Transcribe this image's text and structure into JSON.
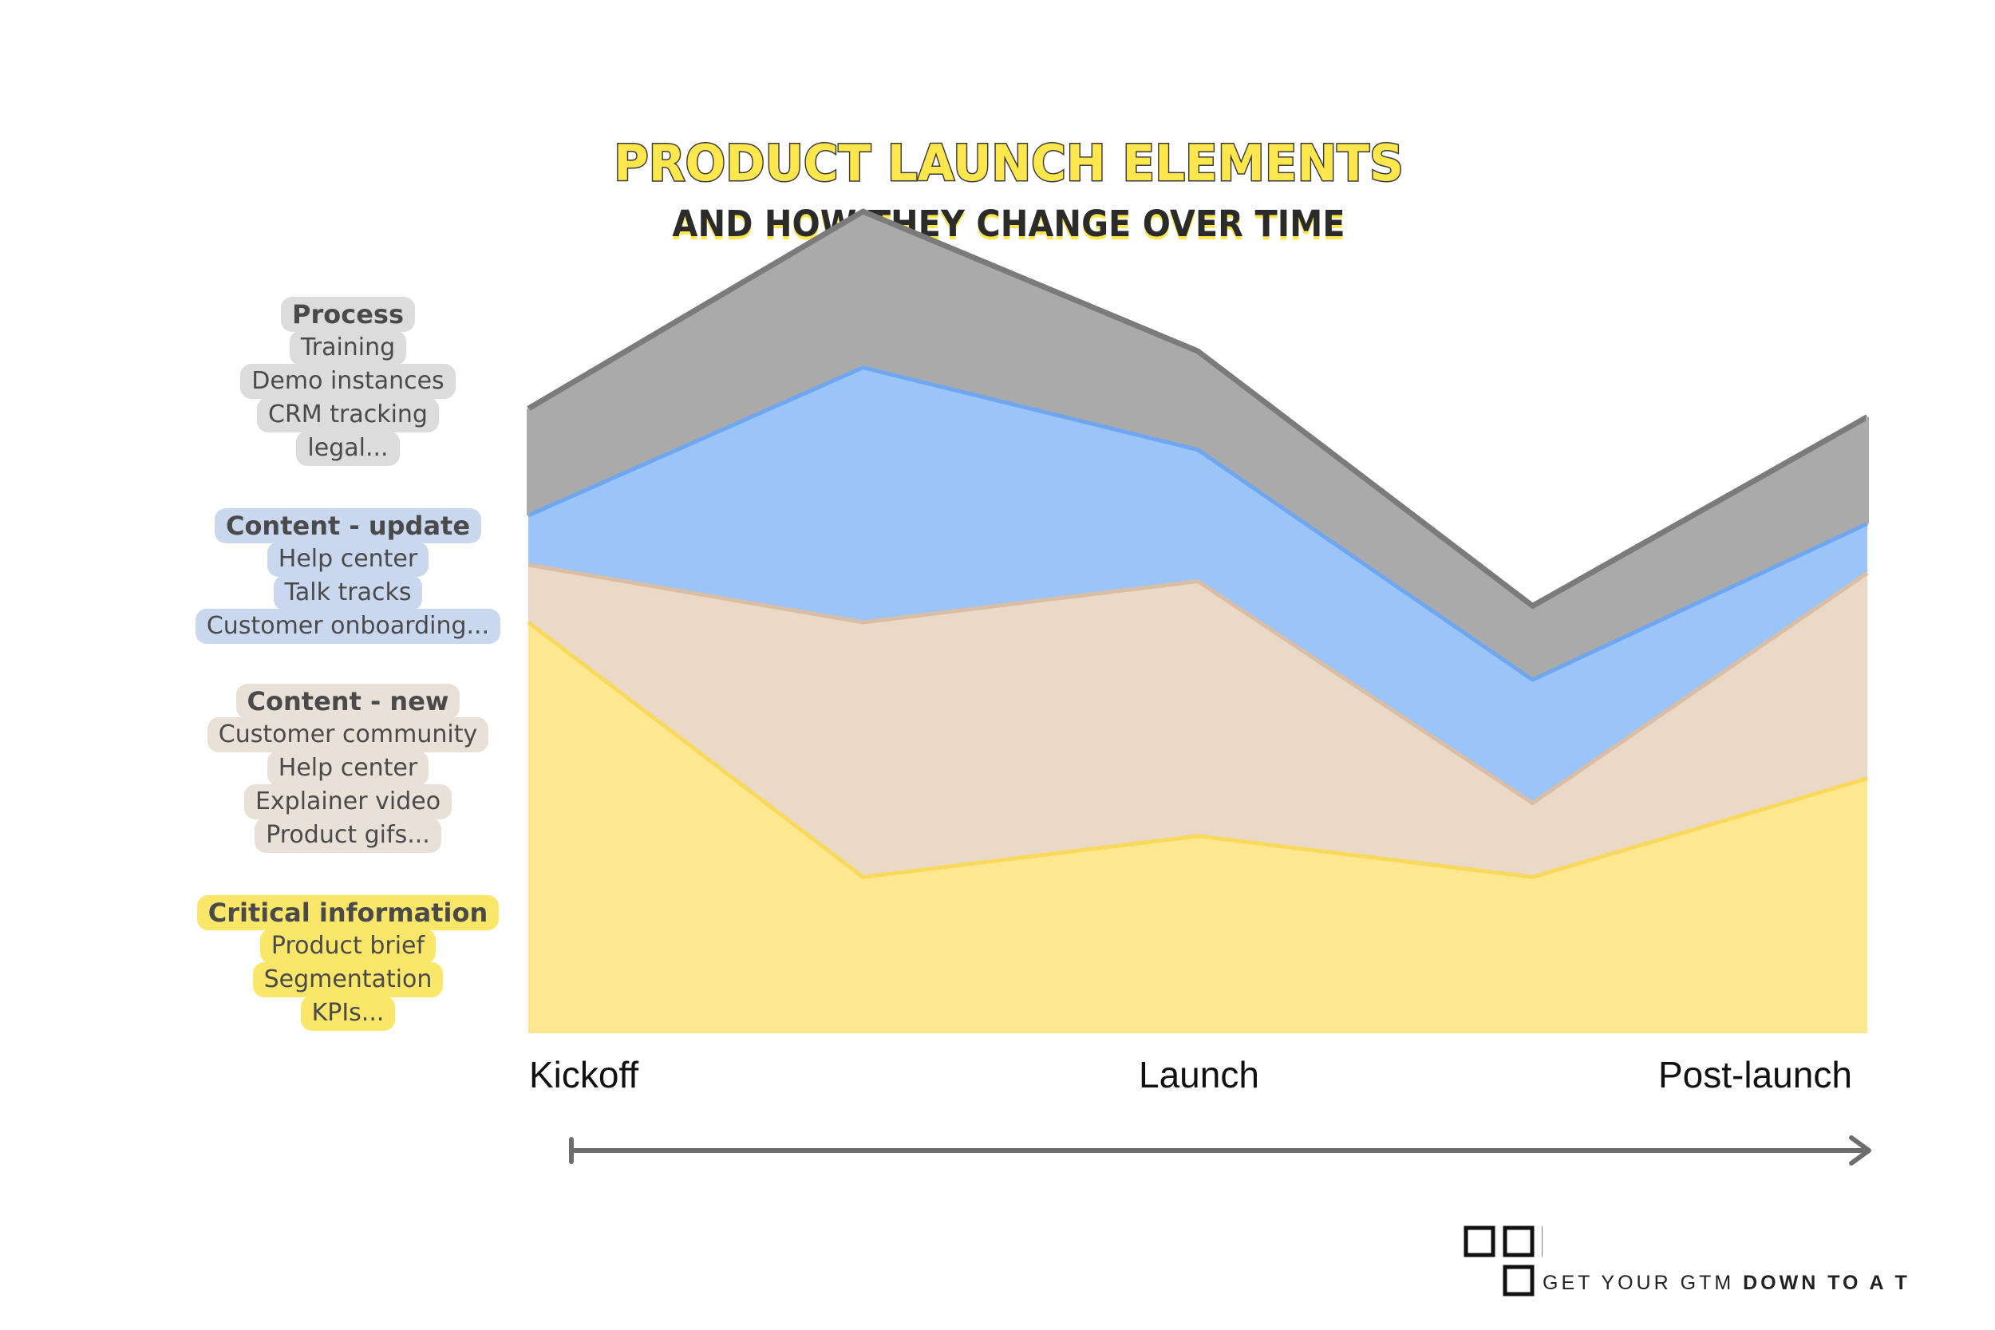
{
  "title": "PRODUCT LAUNCH ELEMENTS",
  "subtitle": "AND HOW THEY CHANGE OVER TIME",
  "colors": {
    "process": "#abaaaa",
    "process_line": "#7b7b7b",
    "update": "#9bc4f8",
    "update_line": "#6ea6f0",
    "new": "#ead9c6",
    "new_line": "#d9bea5",
    "critical": "#fde78f",
    "critical_line": "#f9d95c",
    "legend_process": "#dcdcdc",
    "legend_update": "#c9d8ee",
    "legend_new": "#e9e0d8",
    "legend_critical": "#fae668"
  },
  "legend": {
    "process": {
      "heading": "Process",
      "items": [
        "Training",
        "Demo instances",
        "CRM tracking",
        "legal..."
      ]
    },
    "update": {
      "heading": "Content - update",
      "items": [
        "Help center",
        "Talk tracks",
        "Customer onboarding..."
      ]
    },
    "new": {
      "heading": "Content - new",
      "items": [
        "Customer community",
        "Help center",
        "Explainer video",
        "Product gifs..."
      ]
    },
    "critical": {
      "heading": "Critical information",
      "items": [
        "Product brief",
        "Segmentation",
        "KPIs..."
      ]
    }
  },
  "chart_data": {
    "type": "area",
    "stacked": true,
    "x": [
      0,
      1,
      2,
      3,
      4
    ],
    "ylim": [
      0,
      100
    ],
    "x_tick_labels": [
      "Kickoff",
      "Launch",
      "Post-launch"
    ],
    "series": [
      {
        "name": "Critical information",
        "values": [
          50,
          19,
          24,
          19,
          31
        ]
      },
      {
        "name": "Content - new",
        "values": [
          7,
          31,
          31,
          9,
          25
        ]
      },
      {
        "name": "Content - update",
        "values": [
          6,
          31,
          16,
          15,
          6
        ]
      },
      {
        "name": "Process",
        "values": [
          13,
          19,
          12,
          9,
          13
        ]
      }
    ]
  },
  "brand": {
    "text_regular": "GET YOUR GTM ",
    "text_bold": "DOWN TO A T"
  }
}
